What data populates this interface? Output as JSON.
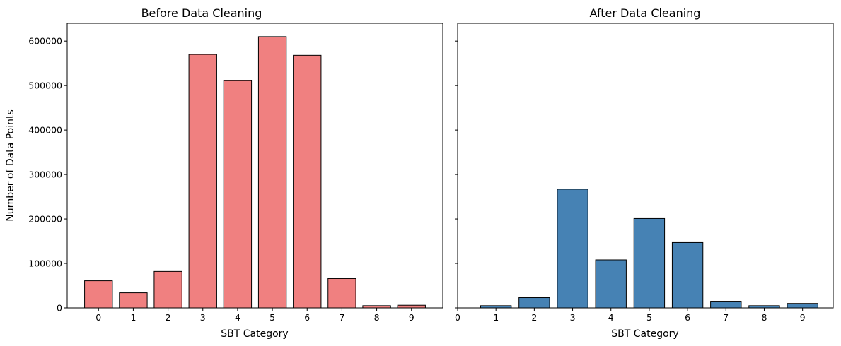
{
  "chart_data": [
    {
      "type": "bar",
      "title": "Before Data Cleaning",
      "xlabel": "SBT Category",
      "ylabel": "Number of Data Points",
      "categories": [
        0,
        1,
        2,
        3,
        4,
        5,
        6,
        7,
        8,
        9
      ],
      "values": [
        61000,
        34000,
        82000,
        570000,
        511000,
        610000,
        568000,
        66000,
        5000,
        6000
      ],
      "xticks": [
        0,
        1,
        2,
        3,
        4,
        5,
        6,
        7,
        8,
        9
      ],
      "yticks": [
        0,
        100000,
        200000,
        300000,
        400000,
        500000,
        600000
      ],
      "ytick_labels": [
        "0",
        "100000",
        "200000",
        "300000",
        "400000",
        "500000",
        "600000"
      ],
      "xlim": [
        -0.9,
        9.9
      ],
      "ylim": [
        0,
        640000
      ],
      "bar_color": "#f08080",
      "edge_color": "#000000"
    },
    {
      "type": "bar",
      "title": "After Data Cleaning",
      "xlabel": "SBT Category",
      "ylabel": "",
      "categories": [
        1,
        2,
        3,
        4,
        5,
        6,
        7,
        8,
        9
      ],
      "values": [
        5000,
        23000,
        267000,
        108000,
        201000,
        147000,
        15000,
        5000,
        10000
      ],
      "xticks": [
        0,
        1,
        2,
        3,
        4,
        5,
        6,
        7,
        8,
        9
      ],
      "yticks": [
        0,
        100000,
        200000,
        300000,
        400000,
        500000,
        600000
      ],
      "ytick_labels": [
        "",
        "",
        "",
        "",
        "",
        "",
        ""
      ],
      "xlim": [
        0,
        9.8
      ],
      "ylim": [
        0,
        640000
      ],
      "bar_color": "#4682b4",
      "edge_color": "#000000"
    }
  ]
}
